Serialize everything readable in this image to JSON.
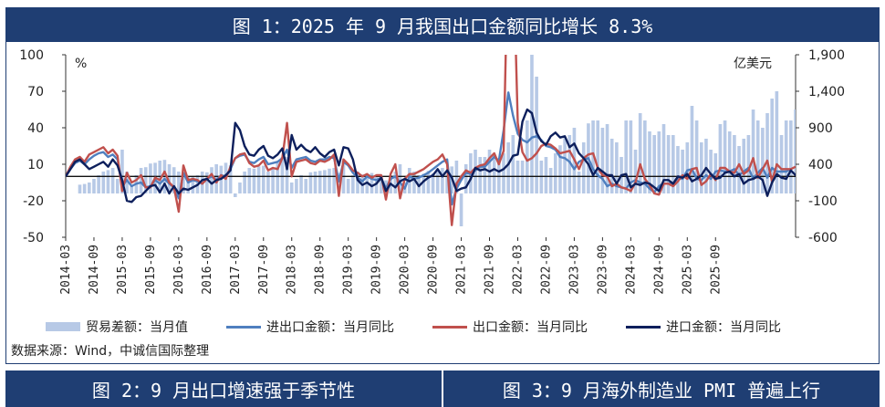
{
  "header": {
    "title": "图 1：2025 年 9 月我国出口金额同比增长 8.3%"
  },
  "footer": {
    "source": "数据来源：Wind，中诚信国际整理"
  },
  "bottom_titles": [
    "图 2：9 月出口增速强于季节性",
    "图 3：9 月海外制造业 PMI 普遍上行"
  ],
  "colors": {
    "bar": "#b7c9e6",
    "total": "#4f7fbf",
    "export": "#c0504d",
    "import": "#0d1f5c",
    "frame": "#1f3e73"
  },
  "chart_data": {
    "type": "bar+line",
    "left_unit": "%",
    "right_unit": "亿美元",
    "left_ticks": [
      100,
      70,
      40,
      10,
      -20,
      -50
    ],
    "right_ticks": [
      "1,900",
      "1,400",
      "900",
      "400",
      "-100",
      "-600"
    ],
    "left_range": [
      -50,
      100
    ],
    "right_range": [
      -600,
      1900
    ],
    "x_ticks": [
      "2014-03",
      "2014-09",
      "2015-03",
      "2015-09",
      "2016-03",
      "2016-09",
      "2017-03",
      "2017-09",
      "2018-03",
      "2018-09",
      "2019-03",
      "2019-09",
      "2020-03",
      "2020-09",
      "2021-03",
      "2021-09",
      "2022-03",
      "2022-09",
      "2023-03",
      "2023-09",
      "2024-03",
      "2024-09",
      "2025-03",
      "2025-09"
    ],
    "legend": [
      "贸易差额：当月值",
      "进出口金额：当月同比",
      "出口金额：当月同比",
      "进口金额：当月同比"
    ],
    "trade_balance": [
      0,
      0,
      0,
      120,
      130,
      150,
      200,
      250,
      300,
      320,
      350,
      200,
      600,
      300,
      100,
      250,
      350,
      360,
      410,
      420,
      450,
      460,
      400,
      360,
      300,
      290,
      230,
      240,
      250,
      300,
      290,
      360,
      400,
      380,
      420,
      390,
      -50,
      150,
      300,
      350,
      340,
      370,
      380,
      300,
      350,
      420,
      500,
      500,
      150,
      200,
      250,
      200,
      290,
      300,
      310,
      320,
      340,
      350,
      280,
      450,
      200,
      250,
      300,
      260,
      230,
      280,
      240,
      210,
      180,
      250,
      300,
      400,
      150,
      350,
      300,
      250,
      270,
      310,
      280,
      320,
      350,
      260,
      370,
      450,
      -450,
      400,
      550,
      600,
      500,
      500,
      600,
      530,
      450,
      550,
      700,
      800,
      450,
      450,
      1000,
      2000,
      1600,
      450,
      500,
      350,
      550,
      660,
      760,
      800,
      900,
      300,
      700,
      960,
      1000,
      1000,
      900,
      950,
      750,
      700,
      500,
      1000,
      1000,
      600,
      1100,
      1000,
      850,
      800,
      850,
      950,
      800,
      800,
      650,
      600,
      700,
      1200,
      1000,
      700,
      750,
      600,
      550,
      950,
      1000,
      850,
      800,
      650,
      750,
      800,
      1150,
      1000,
      900,
      1100,
      1300,
      1400,
      800,
      1000,
      1000,
      1150,
      1050,
      1250,
      900
    ],
    "export_yoy": [
      0,
      8,
      14,
      16,
      12,
      18,
      20,
      22,
      24,
      19,
      22,
      17,
      -12,
      3,
      -5,
      -3,
      1,
      -9,
      -9,
      -1,
      -3,
      4,
      -5,
      -9,
      -29,
      9,
      -3,
      -2,
      -3,
      -6,
      -2,
      2,
      -5,
      1,
      -2,
      8,
      15,
      18,
      19,
      11,
      8,
      9,
      13,
      5,
      7,
      6,
      15,
      44,
      0,
      12,
      13,
      14,
      11,
      10,
      13,
      12,
      14,
      18,
      -16,
      14,
      10,
      5,
      3,
      0,
      2,
      -1,
      1,
      1,
      -19,
      2,
      10,
      -18,
      -2,
      2,
      2,
      4,
      6,
      9,
      12,
      14,
      18,
      10,
      -40,
      -6,
      0,
      5,
      3,
      7,
      9,
      10,
      15,
      19,
      10,
      21,
      200,
      190,
      44,
      20,
      13,
      15,
      19,
      25,
      27,
      26,
      23,
      19,
      20,
      21,
      14,
      6,
      15,
      18,
      19,
      7,
      1,
      0,
      -8,
      -6,
      -9,
      -10,
      -12,
      -5,
      10,
      -2,
      -7,
      -14,
      -15,
      -6,
      -6,
      -8,
      -4,
      1,
      -2,
      6,
      7,
      -7,
      -4,
      2,
      -3,
      7,
      7,
      4,
      3,
      10,
      2,
      5,
      15,
      -1,
      6,
      13,
      -4,
      10,
      6,
      6,
      6,
      8
    ],
    "total_yoy": [
      0,
      6,
      11,
      13,
      10,
      14,
      17,
      19,
      20,
      16,
      18,
      14,
      -8,
      -3,
      -8,
      -6,
      -5,
      -9,
      -8,
      -3,
      -6,
      -2,
      -6,
      -9,
      -18,
      3,
      -5,
      -3,
      -4,
      -6,
      -2,
      0,
      -3,
      1,
      0,
      6,
      15,
      17,
      18,
      12,
      11,
      14,
      16,
      10,
      11,
      12,
      15,
      22,
      7,
      14,
      15,
      16,
      13,
      12,
      14,
      14,
      16,
      15,
      -4,
      12,
      9,
      3,
      -1,
      -4,
      0,
      -2,
      -3,
      -1,
      -10,
      -2,
      0,
      -5,
      -10,
      0,
      -2,
      -1,
      1,
      3,
      6,
      9,
      12,
      14,
      -23,
      -10,
      -3,
      3,
      2,
      5,
      8,
      8,
      12,
      16,
      13,
      38,
      69,
      50,
      35,
      30,
      28,
      32,
      33,
      30,
      25,
      24,
      22,
      16,
      15,
      12,
      6,
      12,
      14,
      15,
      6,
      1,
      -2,
      -8,
      -6,
      -8,
      -9,
      -10,
      -5,
      -3,
      -5,
      -6,
      -10,
      -13,
      -8,
      -6,
      -6,
      -6,
      -1,
      -2,
      5,
      6,
      -2,
      -3,
      1,
      -2,
      4,
      5,
      4,
      4,
      6,
      1,
      4,
      7,
      -2,
      3,
      7,
      -1,
      7,
      4,
      4,
      4,
      6
    ],
    "import_yoy": [
      0,
      6,
      12,
      14,
      10,
      6,
      8,
      10,
      12,
      8,
      14,
      9,
      -3,
      -20,
      -21,
      -17,
      -16,
      -12,
      -8,
      -7,
      -13,
      -6,
      -14,
      -8,
      -14,
      -10,
      -11,
      -9,
      -7,
      -3,
      -2,
      -6,
      -3,
      -2,
      1,
      5,
      44,
      38,
      25,
      18,
      17,
      22,
      25,
      17,
      15,
      18,
      23,
      6,
      34,
      22,
      26,
      22,
      20,
      24,
      19,
      16,
      20,
      22,
      9,
      24,
      23,
      14,
      -3,
      -7,
      -5,
      -8,
      -6,
      -1,
      -12,
      -6,
      -9,
      -4,
      -2,
      -4,
      -2,
      -8,
      -4,
      -1,
      1,
      6,
      0,
      5,
      -1,
      -12,
      -10,
      -9,
      -2,
      7,
      5,
      6,
      4,
      6,
      4,
      6,
      10,
      17,
      18,
      45,
      55,
      52,
      36,
      29,
      26,
      33,
      36,
      32,
      33,
      24,
      27,
      19,
      15,
      10,
      1,
      7,
      4,
      1,
      1,
      -6,
      1,
      2,
      -9,
      -6,
      -7,
      -5,
      -6,
      -9,
      -12,
      -3,
      -3,
      -6,
      0,
      -1,
      2,
      -4,
      -2,
      1,
      7,
      2,
      -2,
      -1,
      3,
      4,
      0,
      2,
      -6,
      -3,
      -2,
      0,
      -3,
      -16,
      -5,
      2,
      -1,
      -2,
      5,
      1,
      4,
      5,
      8
    ]
  }
}
